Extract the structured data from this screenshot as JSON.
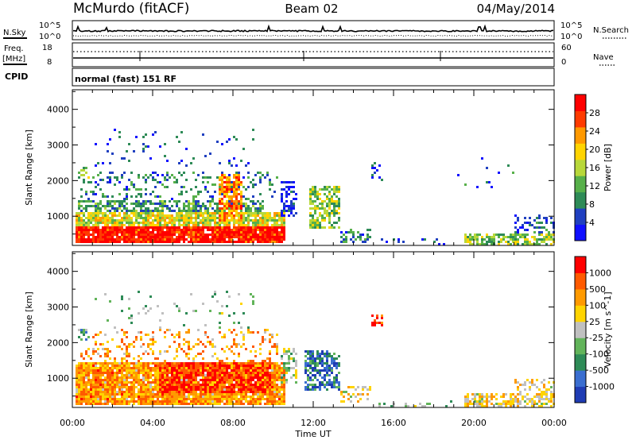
{
  "header": {
    "station": "McMurdo (fitACF)",
    "beam": "Beam 02",
    "date": "04/May/2014"
  },
  "noise_panel": {
    "left_label": "N.Sky",
    "right_label": "N.Search",
    "tick_top": "10^5",
    "tick_bottom": "10^0"
  },
  "freq_panel": {
    "left_label_1": "Freq.",
    "left_label_2": "[MHz]",
    "right_label": "Nave",
    "left_ticks": [
      "18",
      "8"
    ],
    "right_ticks": [
      "60",
      "0"
    ]
  },
  "cpid_panel": {
    "label": "CPID",
    "text": "normal (fast) 151 RF"
  },
  "x_axis": {
    "label": "Time UT",
    "ticks": [
      "00:00",
      "04:00",
      "08:00",
      "12:00",
      "16:00",
      "20:00",
      "00:00"
    ]
  },
  "chart_data": [
    {
      "type": "heatmap",
      "panel": "power",
      "xlabel": "",
      "ylabel": "Slant Range [km]",
      "x_range_hours": [
        0,
        24
      ],
      "ylim": [
        180,
        4550
      ],
      "yticks": [
        1000,
        2000,
        3000,
        4000
      ],
      "ytick_labels": [
        "1000",
        "2000",
        "3000",
        "4000"
      ],
      "colorbar": {
        "label": "Power [dB]",
        "range": [
          0,
          32
        ],
        "tick_values": [
          4,
          8,
          12,
          16,
          20,
          24,
          28
        ],
        "tick_labels": [
          "4",
          "8",
          "12",
          "16",
          "20",
          "24",
          "28"
        ],
        "colors": [
          "#1010ff",
          "#2040c0",
          "#2e8b57",
          "#57b04a",
          "#b8d83a",
          "#ffd400",
          "#ff9900",
          "#ff3b00",
          "#ff0000"
        ]
      },
      "regions": [
        {
          "t": [
            0.05,
            10.6
          ],
          "r": [
            300,
            780
          ],
          "level": 0.93,
          "density": 0.95
        },
        {
          "t": [
            0.1,
            10.6
          ],
          "r": [
            780,
            1150
          ],
          "level": 0.55,
          "density": 0.85
        },
        {
          "t": [
            0.2,
            9.5
          ],
          "r": [
            1150,
            1500
          ],
          "level": 0.3,
          "density": 0.6
        },
        {
          "t": [
            0.3,
            10.2
          ],
          "r": [
            1500,
            2300
          ],
          "level": 0.25,
          "density": 0.22
        },
        {
          "t": [
            7.2,
            8.4
          ],
          "r": [
            900,
            2200
          ],
          "level": 0.75,
          "density": 0.7
        },
        {
          "t": [
            0.2,
            0.8
          ],
          "r": [
            2100,
            2400
          ],
          "level": 0.45,
          "density": 0.5
        },
        {
          "t": [
            1.0,
            9.0
          ],
          "r": [
            2400,
            3500
          ],
          "level": 0.15,
          "density": 0.05
        },
        {
          "t": [
            10.3,
            11.2
          ],
          "r": [
            1000,
            2000
          ],
          "level": 0.1,
          "density": 0.45
        },
        {
          "t": [
            11.8,
            13.3
          ],
          "r": [
            700,
            1900
          ],
          "level": 0.45,
          "density": 0.65
        },
        {
          "t": [
            13.3,
            14.8
          ],
          "r": [
            300,
            700
          ],
          "level": 0.25,
          "density": 0.3
        },
        {
          "t": [
            14.8,
            15.4
          ],
          "r": [
            2000,
            2600
          ],
          "level": 0.1,
          "density": 0.3
        },
        {
          "t": [
            15.0,
            19.5
          ],
          "r": [
            200,
            420
          ],
          "level": 0.08,
          "density": 0.12
        },
        {
          "t": [
            19.5,
            24.0
          ],
          "r": [
            230,
            560
          ],
          "level": 0.45,
          "density": 0.6
        },
        {
          "t": [
            22.0,
            24.0
          ],
          "r": [
            560,
            1100
          ],
          "level": 0.2,
          "density": 0.35
        },
        {
          "t": [
            19.0,
            22.0
          ],
          "r": [
            1800,
            2700
          ],
          "level": 0.2,
          "density": 0.04
        }
      ]
    },
    {
      "type": "heatmap",
      "panel": "velocity",
      "xlabel": "Time UT",
      "ylabel": "Slant Range [km]",
      "x_range_hours": [
        0,
        24
      ],
      "ylim": [
        180,
        4550
      ],
      "yticks": [
        1000,
        2000,
        3000,
        4000
      ],
      "ytick_labels": [
        "1000",
        "2000",
        "3000",
        "4000"
      ],
      "colorbar": {
        "label": "Velocity [m s^-1]",
        "tick_labels": [
          "1000",
          "500",
          "100",
          "25",
          "-25",
          "-100",
          "-500",
          "-1000"
        ],
        "colors": [
          "#1f3cb4",
          "#3a6ed0",
          "#2e8b57",
          "#62b45a",
          "#c0c0c0",
          "#ffd400",
          "#ff9a00",
          "#ff5a00",
          "#ff0000"
        ]
      },
      "regions": [
        {
          "t": [
            0.05,
            10.6
          ],
          "r": [
            300,
            1500
          ],
          "level": 0.72,
          "density": 0.93
        },
        {
          "t": [
            4.3,
            9.8
          ],
          "r": [
            600,
            1500
          ],
          "level": 0.92,
          "density": 0.8
        },
        {
          "t": [
            0.3,
            10.2
          ],
          "r": [
            1500,
            2400
          ],
          "level": 0.7,
          "density": 0.22
        },
        {
          "t": [
            0.2,
            0.8
          ],
          "r": [
            2100,
            2400
          ],
          "level": 0.35,
          "density": 0.45
        },
        {
          "t": [
            1.0,
            9.0
          ],
          "r": [
            2400,
            3500
          ],
          "level": 0.4,
          "density": 0.05
        },
        {
          "t": [
            10.3,
            11.2
          ],
          "r": [
            900,
            1900
          ],
          "level": 0.45,
          "density": 0.5
        },
        {
          "t": [
            11.5,
            13.3
          ],
          "r": [
            700,
            1800
          ],
          "level": 0.2,
          "density": 0.65
        },
        {
          "t": [
            13.3,
            14.8
          ],
          "r": [
            350,
            800
          ],
          "level": 0.55,
          "density": 0.3
        },
        {
          "t": [
            14.8,
            15.4
          ],
          "r": [
            2500,
            2800
          ],
          "level": 0.9,
          "density": 0.3
        },
        {
          "t": [
            15.0,
            19.5
          ],
          "r": [
            200,
            420
          ],
          "level": 0.4,
          "density": 0.12
        },
        {
          "t": [
            19.5,
            24.0
          ],
          "r": [
            230,
            600
          ],
          "level": 0.6,
          "density": 0.6
        },
        {
          "t": [
            22.0,
            24.0
          ],
          "r": [
            600,
            1000
          ],
          "level": 0.6,
          "density": 0.35
        }
      ]
    }
  ]
}
